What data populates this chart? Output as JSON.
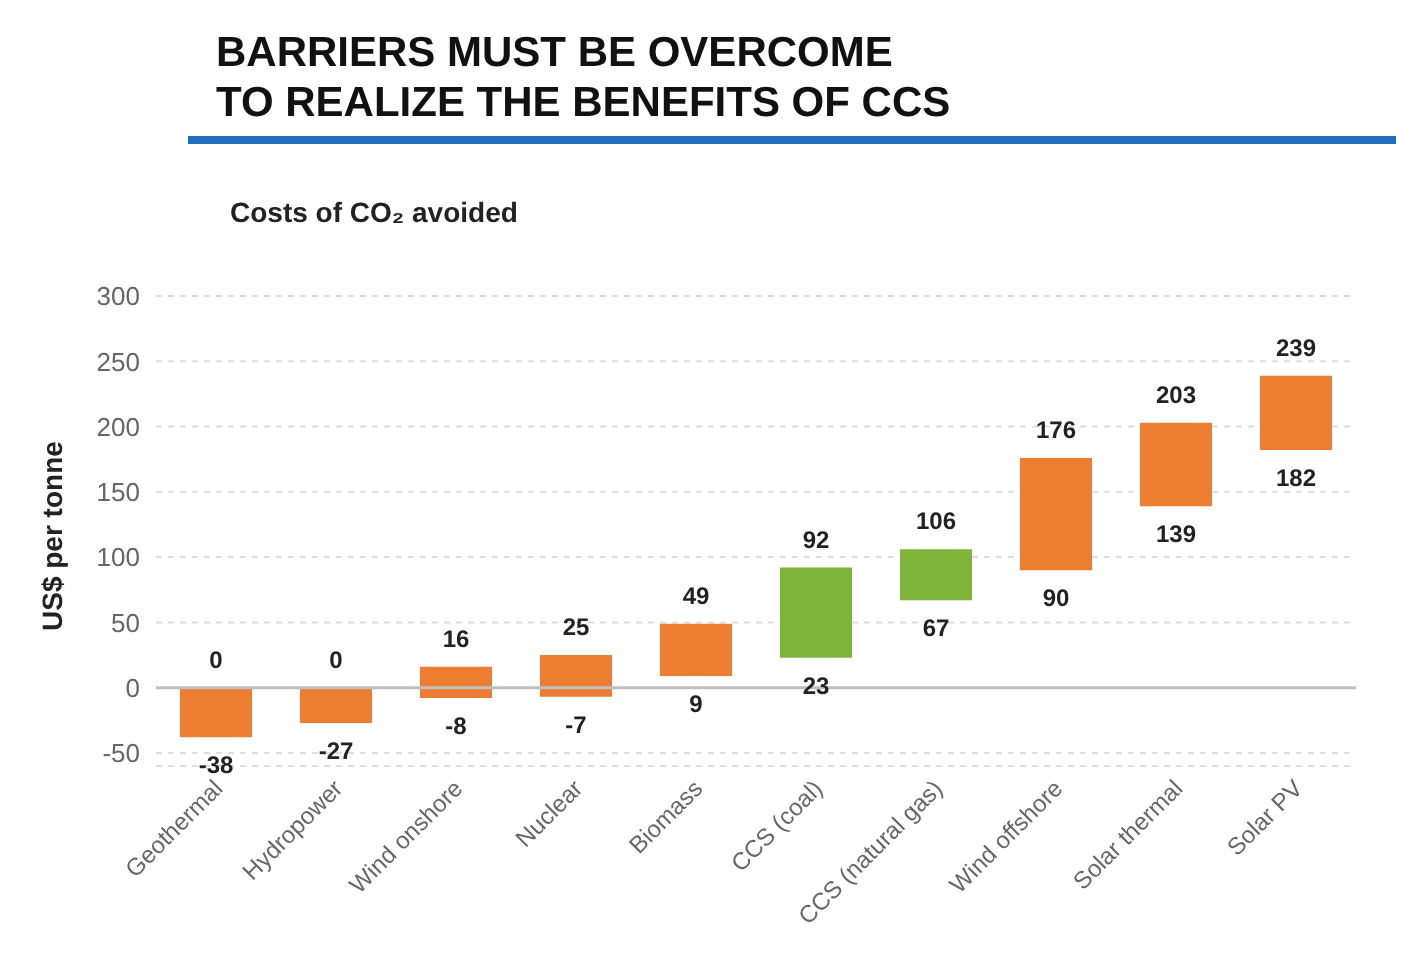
{
  "chart_data": {
    "type": "bar",
    "title": "BARRIERS MUST BE OVERCOME\nTO REALIZE THE BENEFITS OF CCS",
    "subtitle": "Costs of CO₂ avoided",
    "ylabel": "US$ per tonne",
    "categories": [
      "Geothermal",
      "Hydropower",
      "Wind onshore",
      "Nuclear",
      "Biomass",
      "CCS (coal)",
      "CCS (natural gas)",
      "Wind offshore",
      "Solar thermal",
      "Solar PV"
    ],
    "base": [
      -38,
      -27,
      -8,
      -7,
      9,
      23,
      67,
      90,
      139,
      182
    ],
    "values": [
      38,
      27,
      24,
      32,
      40,
      69,
      39,
      86,
      64,
      57
    ],
    "colors": [
      "#ed7d31",
      "#ed7d31",
      "#ed7d31",
      "#ed7d31",
      "#ed7d31",
      "#7cb53a",
      "#7cb53a",
      "#ed7d31",
      "#ed7d31",
      "#ed7d31"
    ],
    "ylim": [
      -60,
      300
    ],
    "yticks": [
      -50,
      0,
      50,
      100,
      150,
      200,
      250,
      300
    ],
    "grid": "y",
    "ref_lines": [
      {
        "axis": "y",
        "value": 0,
        "color": "#bfbfbf"
      }
    ],
    "annotations": [
      {
        "text": "0",
        "x": "Geothermal",
        "y": 0
      },
      {
        "text": "-38",
        "x": "Geothermal",
        "y": -38
      },
      {
        "text": "0",
        "x": "Hydropower",
        "y": 0
      },
      {
        "text": "-27",
        "x": "Hydropower",
        "y": -27
      },
      {
        "text": "16",
        "x": "Wind onshore",
        "y": 16
      },
      {
        "text": "-8",
        "x": "Wind onshore",
        "y": -8
      },
      {
        "text": "25",
        "x": "Nuclear",
        "y": 25
      },
      {
        "text": "-7",
        "x": "Nuclear",
        "y": -7
      },
      {
        "text": "49",
        "x": "Biomass",
        "y": 49
      },
      {
        "text": "9",
        "x": "Biomass",
        "y": 9
      },
      {
        "text": "92",
        "x": "CCS (coal)",
        "y": 92
      },
      {
        "text": "23",
        "x": "CCS (coal)",
        "y": 23
      },
      {
        "text": "106",
        "x": "CCS (natural gas)",
        "y": 106
      },
      {
        "text": "67",
        "x": "CCS (natural gas)",
        "y": 67
      },
      {
        "text": "176",
        "x": "Wind offshore",
        "y": 176
      },
      {
        "text": "90",
        "x": "Wind offshore",
        "y": 90
      },
      {
        "text": "203",
        "x": "Solar thermal",
        "y": 203
      },
      {
        "text": "139",
        "x": "Solar thermal",
        "y": 139
      },
      {
        "text": "239",
        "x": "Solar PV",
        "y": 239
      },
      {
        "text": "182",
        "x": "Solar PV",
        "y": 182
      }
    ]
  }
}
